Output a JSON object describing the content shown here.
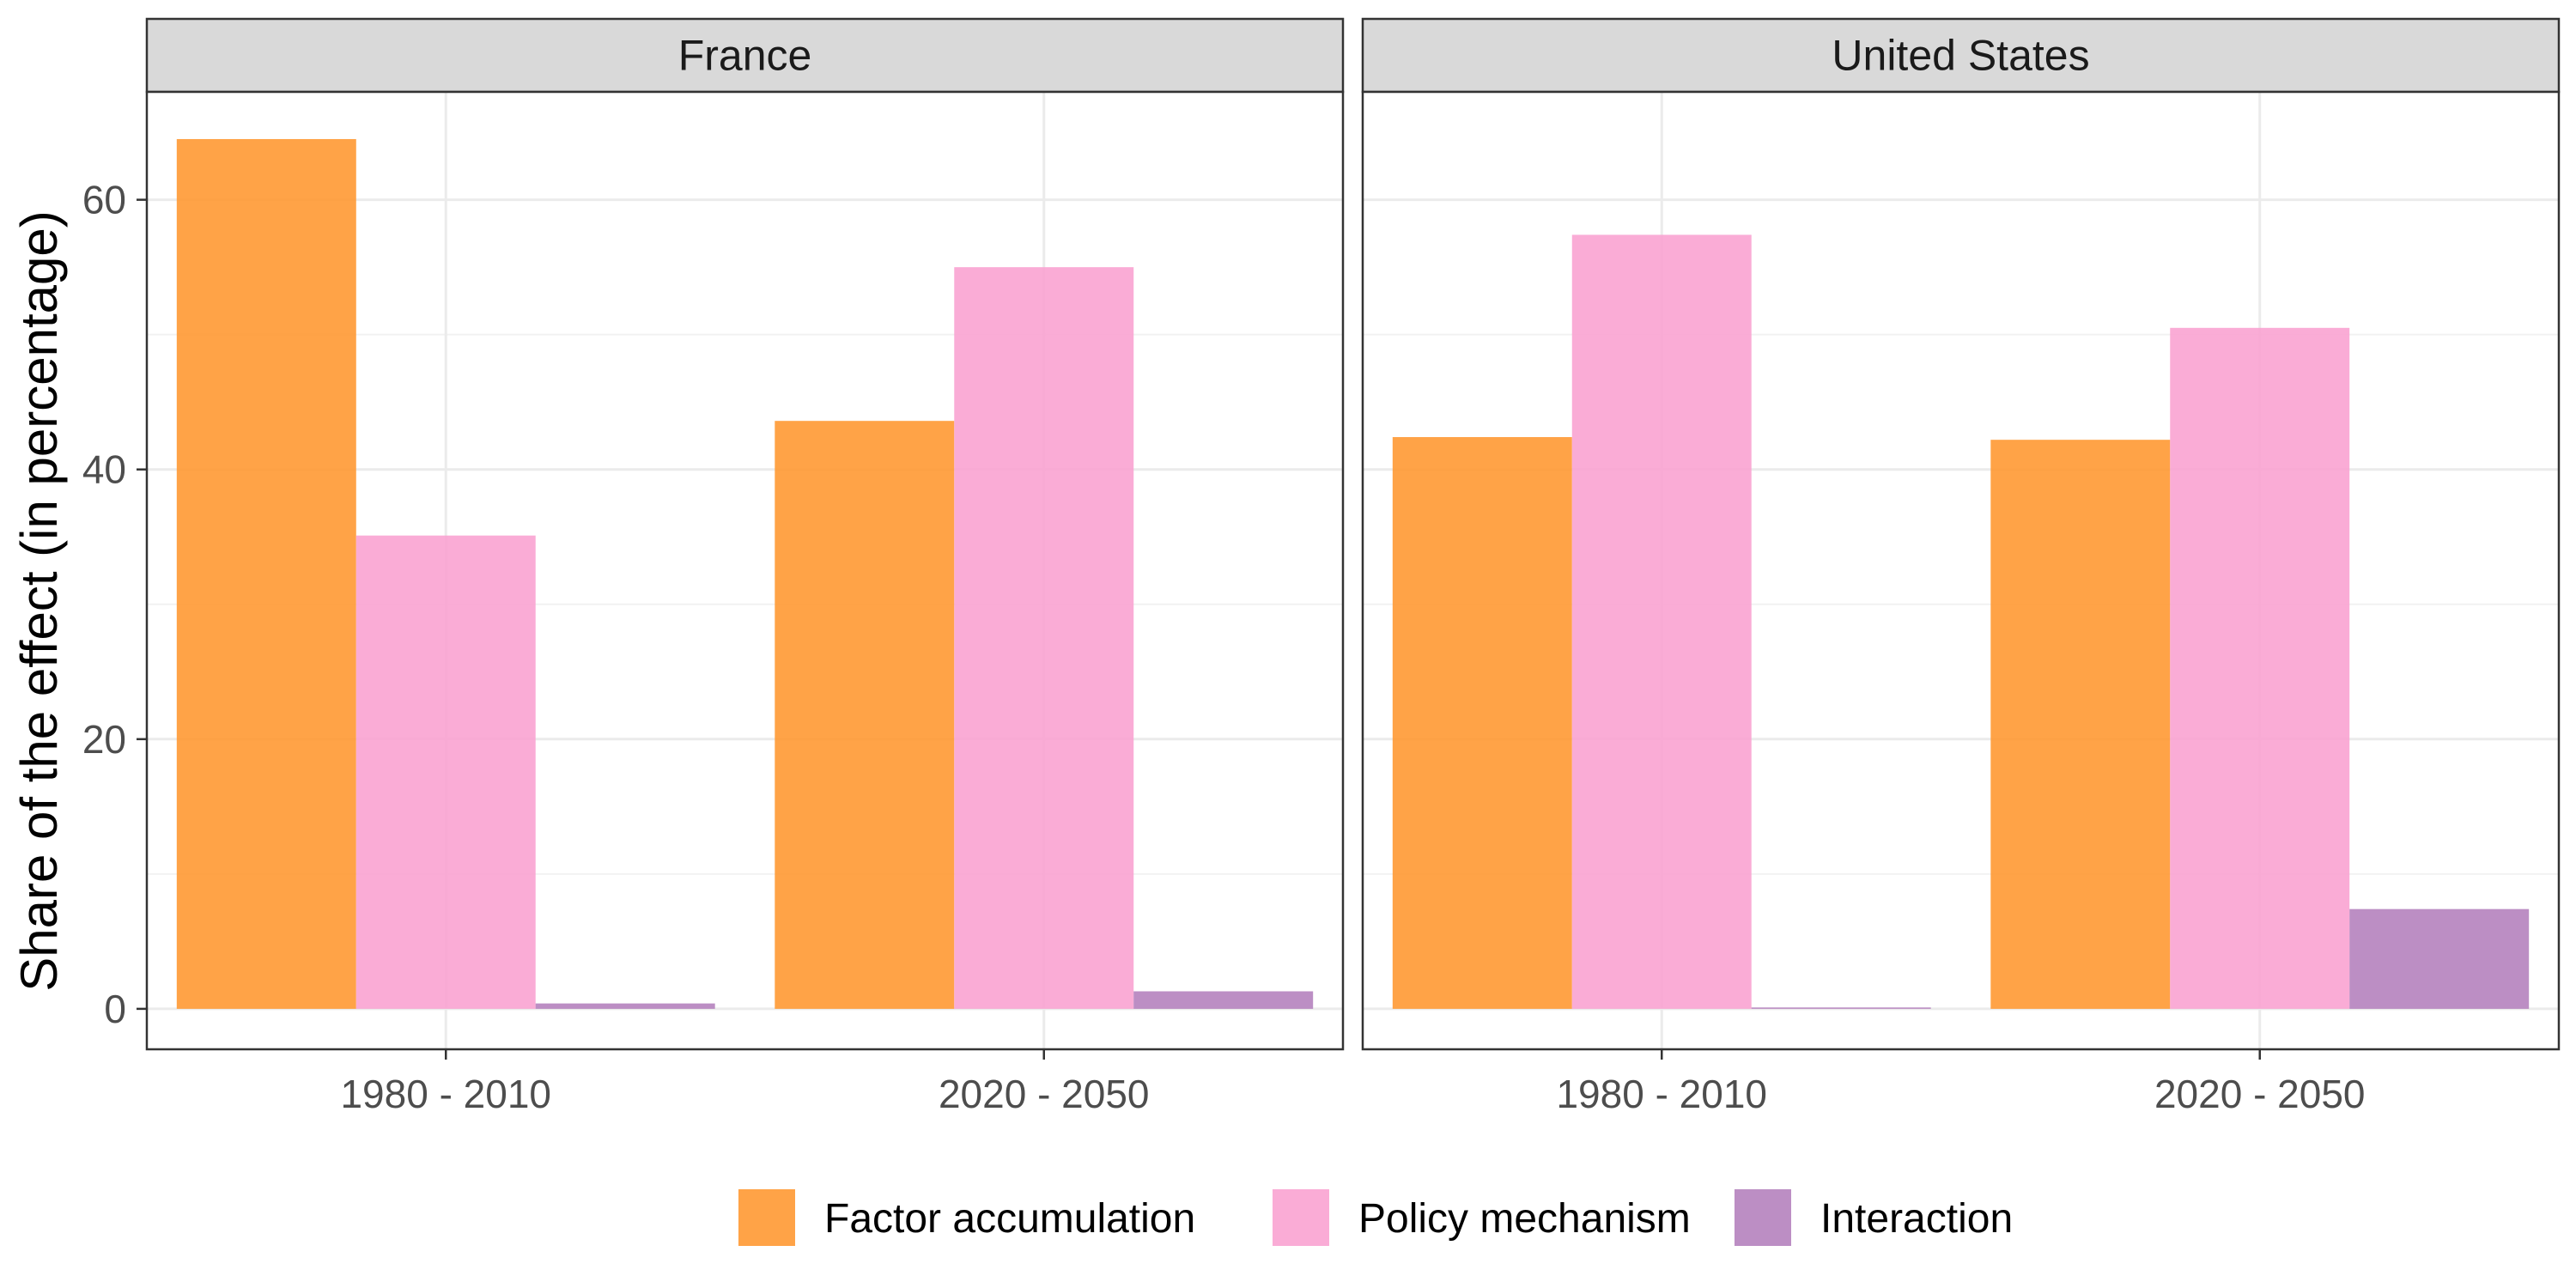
{
  "chart_data": {
    "type": "bar",
    "ylabel": "Share of the effect (in percentage)",
    "xlabel": "",
    "ylim": [
      -3.0,
      68
    ],
    "yticks": [
      0,
      20,
      40,
      60
    ],
    "grid": true,
    "legend_position": "bottom",
    "categories": [
      "1980 - 2010",
      "2020 - 2050"
    ],
    "series_meta": [
      {
        "name": "Factor accumulation",
        "color": "#ff9933"
      },
      {
        "name": "Policy mechanism",
        "color": "#f9a3d1"
      },
      {
        "name": "Interaction",
        "color": "#b582be"
      }
    ],
    "panels": [
      {
        "title": "France",
        "series": [
          {
            "name": "Factor accumulation",
            "values": [
              64.5,
              43.6
            ]
          },
          {
            "name": "Policy mechanism",
            "values": [
              35.1,
              55.0
            ]
          },
          {
            "name": "Interaction",
            "values": [
              0.4,
              1.3
            ]
          }
        ]
      },
      {
        "title": "United States",
        "series": [
          {
            "name": "Factor accumulation",
            "values": [
              42.4,
              42.2
            ]
          },
          {
            "name": "Policy mechanism",
            "values": [
              57.4,
              50.5
            ]
          },
          {
            "name": "Interaction",
            "values": [
              0.1,
              7.4
            ]
          }
        ]
      }
    ]
  }
}
